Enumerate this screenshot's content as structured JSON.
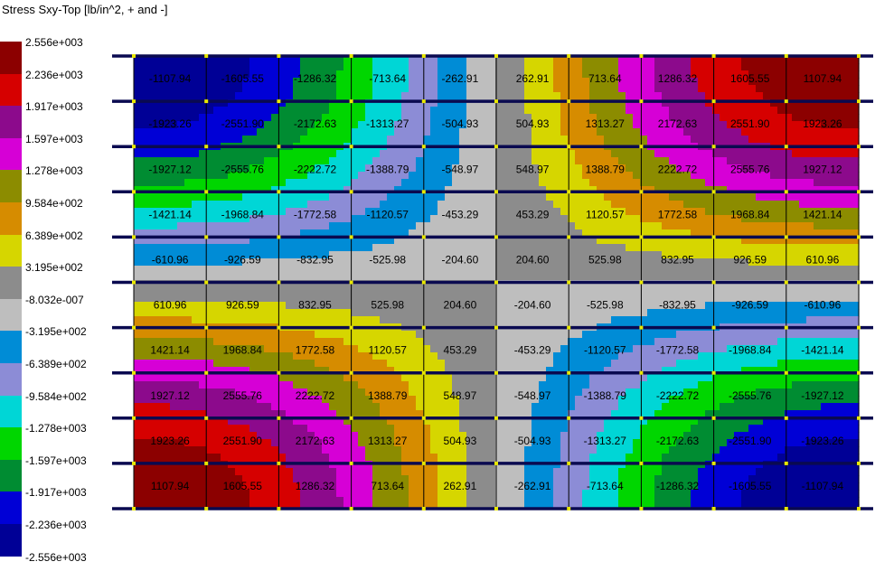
{
  "title": "Stress Sxy-Top [lb/in^2, + and -]",
  "legend": {
    "labels": [
      "2.556e+003",
      "2.236e+003",
      "1.917e+003",
      "1.597e+003",
      "1.278e+003",
      "9.584e+002",
      "6.389e+002",
      "3.195e+002",
      "-8.032e-007",
      "-3.195e+002",
      "-6.389e+002",
      "-9.584e+002",
      "-1.278e+003",
      "-1.597e+003",
      "-1.917e+003",
      "-2.236e+003",
      "-2.556e+003"
    ],
    "colors": [
      "#8c0000",
      "#d60000",
      "#8c0a8c",
      "#d600d6",
      "#8c8c00",
      "#d68c00",
      "#d6d600",
      "#8c8c8c",
      "#bebebe",
      "#008cd6",
      "#8c8cd6",
      "#00d6d6",
      "#00d600",
      "#008c32",
      "#0000d6",
      "#000096"
    ],
    "range": [
      -2556,
      2556
    ]
  },
  "grid": {
    "rows": 10,
    "cols": 10,
    "values": [
      [
        "-1107.94",
        "-1605.55",
        "-1286.32",
        "-713.64",
        "-262.91",
        "262.91",
        "713.64",
        "1286.32",
        "1605.55",
        "1107.94"
      ],
      [
        "-1923.26",
        "-2551.90",
        "-2172.63",
        "-1313.27",
        "-504.93",
        "504.93",
        "1313.27",
        "2172.63",
        "2551.90",
        "1923.26"
      ],
      [
        "-1927.12",
        "-2555.76",
        "-2222.72",
        "-1388.79",
        "-548.97",
        "548.97",
        "1388.79",
        "2222.72",
        "2555.76",
        "1927.12"
      ],
      [
        "-1421.14",
        "-1968.84",
        "-1772.58",
        "-1120.57",
        "-453.29",
        "453.29",
        "1120.57",
        "1772.58",
        "1968.84",
        "1421.14"
      ],
      [
        "-610.96",
        "-926.59",
        "-832.95",
        "-525.98",
        "-204.60",
        "204.60",
        "525.98",
        "832.95",
        "926.59",
        "610.96"
      ],
      [
        "610.96",
        "926.59",
        "832.95",
        "525.98",
        "204.60",
        "-204.60",
        "-525.98",
        "-832.95",
        "-926.59",
        "-610.96"
      ],
      [
        "1421.14",
        "1968.84",
        "1772.58",
        "1120.57",
        "453.29",
        "-453.29",
        "-1120.57",
        "-1772.58",
        "-1968.84",
        "-1421.14"
      ],
      [
        "1927.12",
        "2555.76",
        "2222.72",
        "1388.79",
        "548.97",
        "-548.97",
        "-1388.79",
        "-2222.72",
        "-2555.76",
        "-1927.12"
      ],
      [
        "1923.26",
        "2551.90",
        "2172.63",
        "1313.27",
        "504.93",
        "-504.93",
        "-1313.27",
        "-2172.63",
        "-2551.90",
        "-1923.26"
      ],
      [
        "1107.94",
        "1605.55",
        "1286.32",
        "713.64",
        "262.91",
        "-262.91",
        "-713.64",
        "-1286.32",
        "-1605.55",
        "-1107.94"
      ]
    ]
  }
}
